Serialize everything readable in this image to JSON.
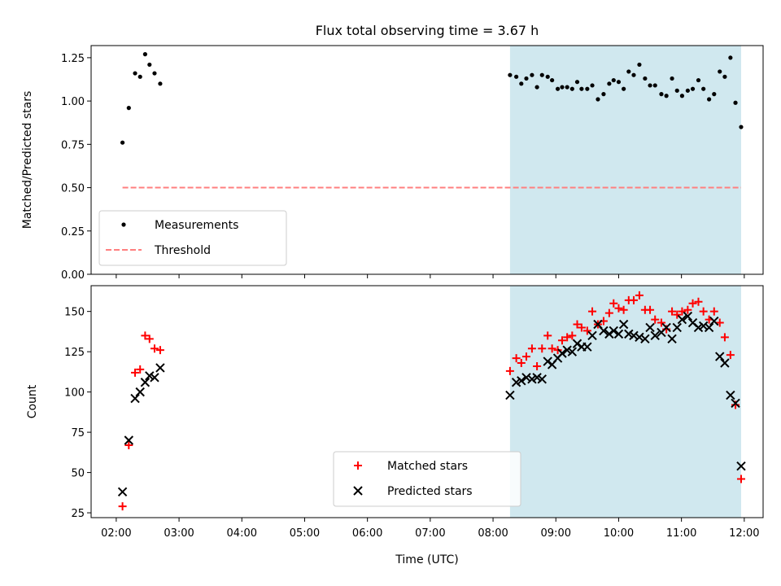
{
  "chart_data": [
    {
      "type": "scatter",
      "title": "Flux total observing time = 3.67 h",
      "ylabel": "Matched/Predicted stars",
      "xlabel": "",
      "x_unit": "hours UTC",
      "xlim": [
        1.6,
        12.3
      ],
      "ylim": [
        0,
        1.32
      ],
      "yticks": [
        "0.00",
        "0.25",
        "0.50",
        "0.75",
        "1.00",
        "1.25"
      ],
      "shaded_region": {
        "x": [
          8.27,
          11.95
        ],
        "color": "#d0e8ef"
      },
      "threshold": {
        "name": "Threshold",
        "value": 0.5,
        "x": [
          2.1,
          11.95
        ],
        "color": "#ff7f7f"
      },
      "legend": {
        "placement": "lower-left",
        "entries": [
          "Measurements",
          "Threshold"
        ]
      },
      "series": [
        {
          "name": "Measurements",
          "color": "#000000",
          "points": [
            [
              2.1,
              0.76
            ],
            [
              2.2,
              0.96
            ],
            [
              2.3,
              1.16
            ],
            [
              2.38,
              1.14
            ],
            [
              2.46,
              1.27
            ],
            [
              2.53,
              1.21
            ],
            [
              2.61,
              1.16
            ],
            [
              2.7,
              1.1
            ],
            [
              8.27,
              1.15
            ],
            [
              8.37,
              1.14
            ],
            [
              8.45,
              1.1
            ],
            [
              8.53,
              1.13
            ],
            [
              8.62,
              1.15
            ],
            [
              8.7,
              1.08
            ],
            [
              8.78,
              1.15
            ],
            [
              8.87,
              1.14
            ],
            [
              8.94,
              1.12
            ],
            [
              9.03,
              1.07
            ],
            [
              9.1,
              1.08
            ],
            [
              9.18,
              1.08
            ],
            [
              9.26,
              1.07
            ],
            [
              9.34,
              1.11
            ],
            [
              9.41,
              1.07
            ],
            [
              9.5,
              1.07
            ],
            [
              9.58,
              1.09
            ],
            [
              9.67,
              1.01
            ],
            [
              9.76,
              1.04
            ],
            [
              9.85,
              1.1
            ],
            [
              9.92,
              1.12
            ],
            [
              10.0,
              1.11
            ],
            [
              10.08,
              1.07
            ],
            [
              10.16,
              1.17
            ],
            [
              10.24,
              1.15
            ],
            [
              10.33,
              1.21
            ],
            [
              10.42,
              1.13
            ],
            [
              10.5,
              1.09
            ],
            [
              10.58,
              1.09
            ],
            [
              10.68,
              1.04
            ],
            [
              10.76,
              1.03
            ],
            [
              10.85,
              1.13
            ],
            [
              10.93,
              1.06
            ],
            [
              11.01,
              1.03
            ],
            [
              11.1,
              1.06
            ],
            [
              11.18,
              1.07
            ],
            [
              11.27,
              1.12
            ],
            [
              11.35,
              1.07
            ],
            [
              11.44,
              1.01
            ],
            [
              11.52,
              1.04
            ],
            [
              11.61,
              1.17
            ],
            [
              11.69,
              1.14
            ],
            [
              11.78,
              1.25
            ],
            [
              11.86,
              0.99
            ],
            [
              11.95,
              0.85
            ]
          ]
        }
      ]
    },
    {
      "type": "scatter",
      "title": "",
      "ylabel": "Count",
      "xlabel": "Time (UTC)",
      "xlim": [
        1.6,
        12.3
      ],
      "ylim": [
        22,
        166
      ],
      "yticks": [
        "25",
        "50",
        "75",
        "100",
        "125",
        "150"
      ],
      "xticks": [
        "02:00",
        "03:00",
        "04:00",
        "05:00",
        "06:00",
        "07:00",
        "08:00",
        "09:00",
        "10:00",
        "11:00",
        "12:00"
      ],
      "shaded_region": {
        "x": [
          8.27,
          11.95
        ],
        "color": "#d0e8ef"
      },
      "legend": {
        "placement": "lower-center",
        "entries": [
          "Matched stars",
          "Predicted stars"
        ]
      },
      "series": [
        {
          "name": "Matched stars",
          "marker": "plus",
          "color": "#ff0000",
          "points": [
            [
              2.1,
              29
            ],
            [
              2.2,
              67
            ],
            [
              2.3,
              112
            ],
            [
              2.38,
              114
            ],
            [
              2.46,
              135
            ],
            [
              2.53,
              133
            ],
            [
              2.61,
              127
            ],
            [
              2.7,
              126
            ],
            [
              8.27,
              113
            ],
            [
              8.37,
              121
            ],
            [
              8.45,
              118
            ],
            [
              8.53,
              122
            ],
            [
              8.62,
              127
            ],
            [
              8.7,
              116
            ],
            [
              8.78,
              127
            ],
            [
              8.87,
              135
            ],
            [
              8.94,
              127
            ],
            [
              9.03,
              126
            ],
            [
              9.1,
              132
            ],
            [
              9.18,
              134
            ],
            [
              9.26,
              135
            ],
            [
              9.34,
              142
            ],
            [
              9.41,
              140
            ],
            [
              9.5,
              138
            ],
            [
              9.58,
              150
            ],
            [
              9.67,
              142
            ],
            [
              9.76,
              144
            ],
            [
              9.85,
              149
            ],
            [
              9.92,
              155
            ],
            [
              10.0,
              152
            ],
            [
              10.08,
              151
            ],
            [
              10.16,
              157
            ],
            [
              10.24,
              157
            ],
            [
              10.33,
              160
            ],
            [
              10.42,
              151
            ],
            [
              10.5,
              151
            ],
            [
              10.58,
              145
            ],
            [
              10.68,
              143
            ],
            [
              10.76,
              139
            ],
            [
              10.85,
              150
            ],
            [
              10.93,
              148
            ],
            [
              11.01,
              150
            ],
            [
              11.1,
              151
            ],
            [
              11.18,
              155
            ],
            [
              11.27,
              156
            ],
            [
              11.35,
              150
            ],
            [
              11.44,
              145
            ],
            [
              11.52,
              150
            ],
            [
              11.61,
              143
            ],
            [
              11.69,
              134
            ],
            [
              11.78,
              123
            ],
            [
              11.86,
              92
            ],
            [
              11.95,
              46
            ]
          ]
        },
        {
          "name": "Predicted stars",
          "marker": "x",
          "color": "#000000",
          "points": [
            [
              2.1,
              38
            ],
            [
              2.2,
              70
            ],
            [
              2.3,
              96
            ],
            [
              2.38,
              100
            ],
            [
              2.46,
              106
            ],
            [
              2.53,
              110
            ],
            [
              2.61,
              109
            ],
            [
              2.7,
              115
            ],
            [
              8.27,
              98
            ],
            [
              8.37,
              106
            ],
            [
              8.45,
              107
            ],
            [
              8.53,
              109
            ],
            [
              8.62,
              108
            ],
            [
              8.7,
              109
            ],
            [
              8.78,
              108
            ],
            [
              8.87,
              119
            ],
            [
              8.94,
              117
            ],
            [
              9.03,
              121
            ],
            [
              9.1,
              124
            ],
            [
              9.18,
              126
            ],
            [
              9.26,
              125
            ],
            [
              9.34,
              130
            ],
            [
              9.41,
              128
            ],
            [
              9.5,
              128
            ],
            [
              9.58,
              135
            ],
            [
              9.67,
              142
            ],
            [
              9.76,
              138
            ],
            [
              9.85,
              136
            ],
            [
              9.92,
              138
            ],
            [
              10.0,
              136
            ],
            [
              10.08,
              142
            ],
            [
              10.16,
              136
            ],
            [
              10.24,
              135
            ],
            [
              10.33,
              134
            ],
            [
              10.42,
              133
            ],
            [
              10.5,
              140
            ],
            [
              10.58,
              135
            ],
            [
              10.68,
              137
            ],
            [
              10.76,
              140
            ],
            [
              10.85,
              133
            ],
            [
              10.93,
              140
            ],
            [
              11.01,
              145
            ],
            [
              11.1,
              147
            ],
            [
              11.18,
              143
            ],
            [
              11.27,
              140
            ],
            [
              11.35,
              141
            ],
            [
              11.44,
              140
            ],
            [
              11.52,
              144
            ],
            [
              11.61,
              122
            ],
            [
              11.69,
              118
            ],
            [
              11.78,
              98
            ],
            [
              11.86,
              93
            ],
            [
              11.95,
              54
            ]
          ]
        }
      ]
    }
  ]
}
